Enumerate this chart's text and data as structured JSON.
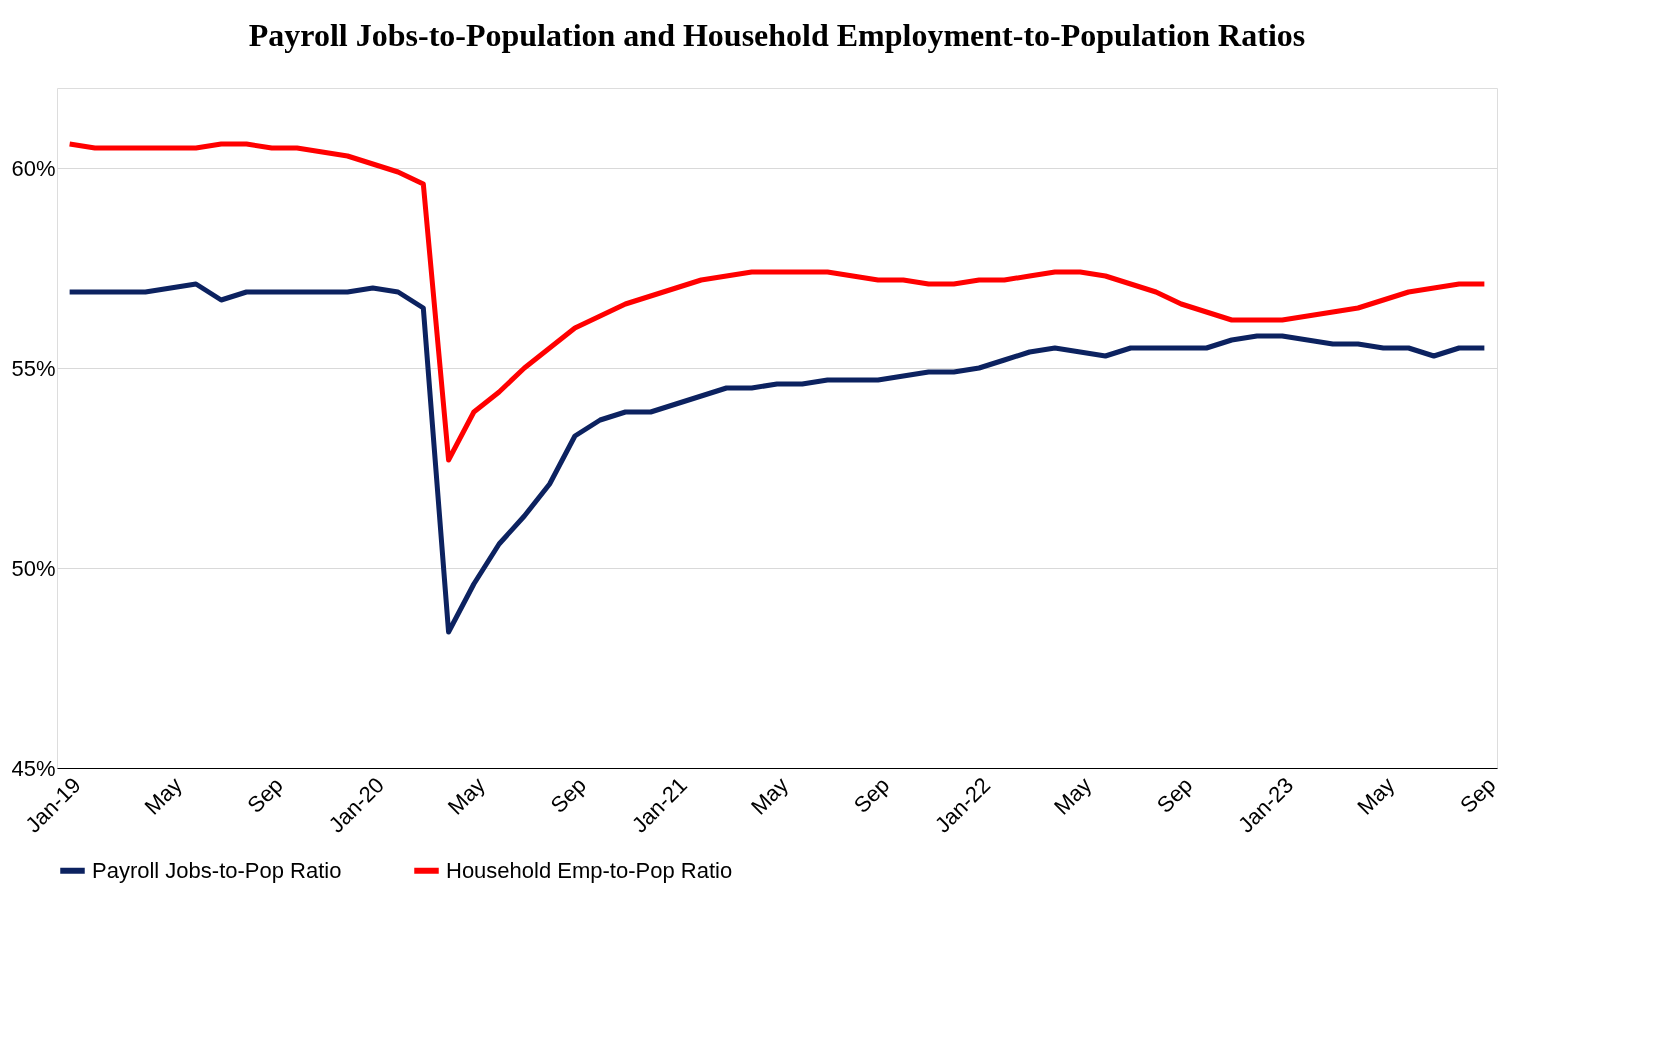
{
  "chart_data": {
    "type": "line",
    "title": "Payroll Jobs-to-Population and Household Employment-to-Population Ratios",
    "categories": [
      "Jan-19",
      null,
      null,
      null,
      "May",
      null,
      null,
      null,
      "Sep",
      null,
      null,
      null,
      "Jan-20",
      null,
      null,
      null,
      "May",
      null,
      null,
      null,
      "Sep",
      null,
      null,
      null,
      "Jan-21",
      null,
      null,
      null,
      "May",
      null,
      null,
      null,
      "Sep",
      null,
      null,
      null,
      "Jan-22",
      null,
      null,
      null,
      "May",
      null,
      null,
      null,
      "Sep",
      null,
      null,
      null,
      "Jan-23",
      null,
      null,
      null,
      "May",
      null,
      null,
      null,
      "Sep"
    ],
    "series": [
      {
        "name": "Payroll Jobs-to-Pop Ratio",
        "color": "#0c2260",
        "values": [
          56.9,
          56.9,
          56.9,
          56.9,
          57.0,
          57.1,
          56.7,
          56.9,
          56.9,
          56.9,
          56.9,
          56.9,
          57.0,
          56.9,
          56.5,
          48.4,
          49.6,
          50.6,
          51.3,
          52.1,
          53.3,
          53.7,
          53.9,
          53.9,
          54.1,
          54.3,
          54.5,
          54.5,
          54.6,
          54.6,
          54.7,
          54.7,
          54.7,
          54.8,
          54.9,
          54.9,
          55.0,
          55.2,
          55.4,
          55.5,
          55.4,
          55.3,
          55.5,
          55.5,
          55.5,
          55.5,
          55.7,
          55.8,
          55.8,
          55.7,
          55.6,
          55.6,
          55.5,
          55.5,
          55.3,
          55.5,
          55.5
        ]
      },
      {
        "name": "Household Emp-to-Pop Ratio",
        "color": "#ff0000",
        "values": [
          60.6,
          60.5,
          60.5,
          60.5,
          60.5,
          60.5,
          60.6,
          60.6,
          60.5,
          60.5,
          60.4,
          60.3,
          60.1,
          59.9,
          59.6,
          52.7,
          53.9,
          54.4,
          55.0,
          55.5,
          56.0,
          56.3,
          56.6,
          56.8,
          57.0,
          57.2,
          57.3,
          57.4,
          57.4,
          57.4,
          57.4,
          57.3,
          57.2,
          57.2,
          57.1,
          57.1,
          57.2,
          57.2,
          57.3,
          57.4,
          57.4,
          57.3,
          57.1,
          56.9,
          56.6,
          56.4,
          56.2,
          56.2,
          56.2,
          56.3,
          56.4,
          56.5,
          56.7,
          56.9,
          57.0,
          57.1,
          57.1
        ]
      }
    ],
    "ylim": [
      45,
      62
    ],
    "yticks": [
      {
        "value": 45,
        "label": "45%"
      },
      {
        "value": 50,
        "label": "50%"
      },
      {
        "value": 55,
        "label": "55%"
      },
      {
        "value": 60,
        "label": "60%"
      }
    ],
    "grid": "y",
    "legend": "bottom",
    "line_style": "solid",
    "marker": "none"
  }
}
